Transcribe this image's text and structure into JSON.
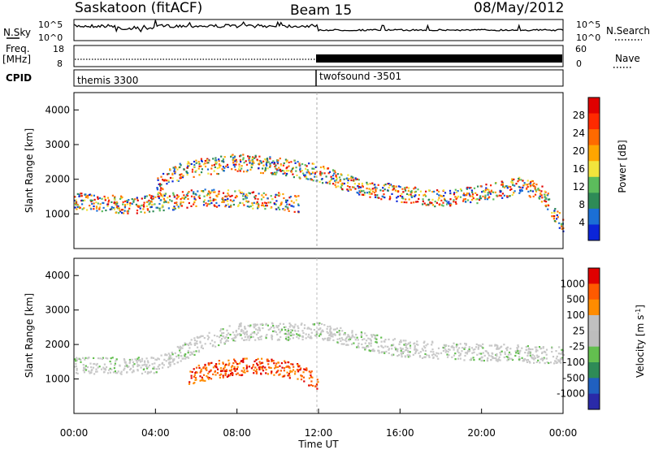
{
  "header": {
    "station": "Saskatoon (fitACF)",
    "beam": "Beam 15",
    "date": "08/May/2012"
  },
  "side_labels": {
    "nsky": "N.Sky",
    "freq": "Freq.",
    "freq_unit": "[MHz]",
    "cpid": "CPID",
    "nsearch": "N.Search",
    "nave": "Nave"
  },
  "top_axes": {
    "nsky_left_ticks": [
      "10^5",
      "10^0"
    ],
    "nsearch_right_ticks": [
      "10^5",
      "10^0"
    ],
    "freq_left_ticks": [
      "18",
      "8"
    ],
    "nave_right_ticks": [
      "60",
      "0"
    ]
  },
  "cpid_segments": [
    {
      "label": "themis 3300",
      "start_hour": 0,
      "end_hour": 12
    },
    {
      "label": "twofsound -3501",
      "start_hour": 12,
      "end_hour": 24
    }
  ],
  "x_axis": {
    "label": "Time UT",
    "ticks": [
      "00:00",
      "04:00",
      "08:00",
      "12:00",
      "16:00",
      "20:00",
      "00:00"
    ],
    "range_hours": [
      0,
      24
    ]
  },
  "power_panel": {
    "ylabel": "Slant Range [km]",
    "yticks": [
      "4000",
      "3000",
      "2000",
      "1000"
    ],
    "colorbar_label": "Power [dB]",
    "colorbar_ticks": [
      "28",
      "24",
      "20",
      "16",
      "12",
      "8",
      "4"
    ],
    "colors": [
      "#0b25d8",
      "#1b6fd6",
      "#2e8b57",
      "#5cbc5c",
      "#f2e43c",
      "#ffa500",
      "#ff6a00",
      "#ff2a00",
      "#e00000"
    ]
  },
  "velocity_panel": {
    "ylabel": "Slant Range [km]",
    "yticks": [
      "4000",
      "3000",
      "2000",
      "1000"
    ],
    "colorbar_label": "Velocity [m s",
    "colorbar_label_sup": "-1",
    "colorbar_label_end": "]",
    "colorbar_ticks": [
      "1000",
      "500",
      "100",
      "25",
      "-25",
      "-100",
      "-500",
      "-1000"
    ],
    "colors": [
      "#2a2aa8",
      "#2060c0",
      "#2e8b57",
      "#63bf4f",
      "#bdbdbd",
      "#c0c0c0",
      "#ff8c00",
      "#ff5a00",
      "#e00000"
    ]
  },
  "chart_data": [
    {
      "type": "heatmap",
      "title": "Power",
      "xlabel": "Time UT",
      "ylabel": "Slant Range [km]",
      "xlim": [
        0,
        24
      ],
      "ylim": [
        0,
        4500
      ],
      "grid": false,
      "zlabel": "Power [dB]",
      "zrange": [
        0,
        30
      ],
      "bands": [
        {
          "name": "lower",
          "points": [
            [
              0,
              1400
            ],
            [
              2,
              1300
            ],
            [
              3,
              1250
            ],
            [
              4,
              1350
            ],
            [
              5,
              1400
            ],
            [
              6,
              1500
            ],
            [
              8,
              1450
            ],
            [
              10,
              1400
            ],
            [
              11,
              1300
            ]
          ]
        },
        {
          "name": "upper",
          "points": [
            [
              4,
              1800
            ],
            [
              5,
              2200
            ],
            [
              6,
              2350
            ],
            [
              8,
              2500
            ],
            [
              10,
              2400
            ],
            [
              12,
              2200
            ],
            [
              14,
              1800
            ],
            [
              16,
              1600
            ],
            [
              18,
              1450
            ],
            [
              20,
              1600
            ],
            [
              22,
              1850
            ],
            [
              23,
              1600
            ],
            [
              24,
              600
            ]
          ]
        }
      ]
    },
    {
      "type": "heatmap",
      "title": "Velocity",
      "xlabel": "Time UT",
      "ylabel": "Slant Range [km]",
      "xlim": [
        0,
        24
      ],
      "ylim": [
        0,
        4500
      ],
      "grid": false,
      "zlabel": "Velocity [m s-1]",
      "zrange": [
        -1000,
        1000
      ],
      "bands": [
        {
          "name": "ground",
          "points": [
            [
              0,
              1400
            ],
            [
              4,
              1400
            ],
            [
              6,
              2000
            ],
            [
              8,
              2400
            ],
            [
              12,
              2400
            ],
            [
              16,
              1900
            ],
            [
              20,
              1800
            ],
            [
              24,
              1700
            ]
          ]
        },
        {
          "name": "negative",
          "points": [
            [
              5.5,
              1100
            ],
            [
              7,
              1300
            ],
            [
              9,
              1400
            ],
            [
              11,
              1250
            ],
            [
              12,
              900
            ]
          ]
        }
      ]
    }
  ]
}
